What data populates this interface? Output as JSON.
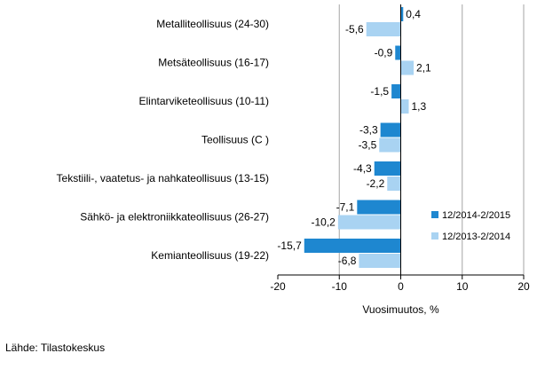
{
  "chart_data": {
    "type": "bar",
    "orientation": "horizontal",
    "categories": [
      "Metalliteollisuus (24-30)",
      "Metsäteollisuus (16-17)",
      "Elintarviketeollisuus (10-11)",
      "Teollisuus (C )",
      "Tekstiili-, vaatetus- ja nahkateollisuus (13-15)",
      "Sähkö- ja elektroniikkateollisuus (26-27)",
      "Kemianteollisuus (19-22)"
    ],
    "series": [
      {
        "name": "12/2014-2/2015",
        "color": "#1e87d0",
        "values": [
          0.4,
          -0.9,
          -1.5,
          -3.3,
          -4.3,
          -7.1,
          -15.7
        ],
        "labels": [
          "0,4",
          "-0,9",
          "-1,5",
          "-3,3",
          "-4,3",
          "-7,1",
          "-15,7"
        ]
      },
      {
        "name": "12/2013-2/2014",
        "color": "#a9d3f2",
        "values": [
          -5.6,
          2.1,
          1.3,
          -3.5,
          -2.2,
          -10.2,
          -6.8
        ],
        "labels": [
          "-5,6",
          "2,1",
          "1,3",
          "-3,5",
          "-2,2",
          "-10,2",
          "-6,8"
        ]
      }
    ],
    "xlim": [
      -20,
      20
    ],
    "xticks": [
      -20,
      -10,
      0,
      10,
      20
    ],
    "xtick_labels": [
      "-20",
      "-10",
      "0",
      "10",
      "20"
    ],
    "xlabel": "Vuosimuutos, %",
    "grid": true,
    "legend_position": "right"
  },
  "source": "Lähde: Tilastokeskus"
}
